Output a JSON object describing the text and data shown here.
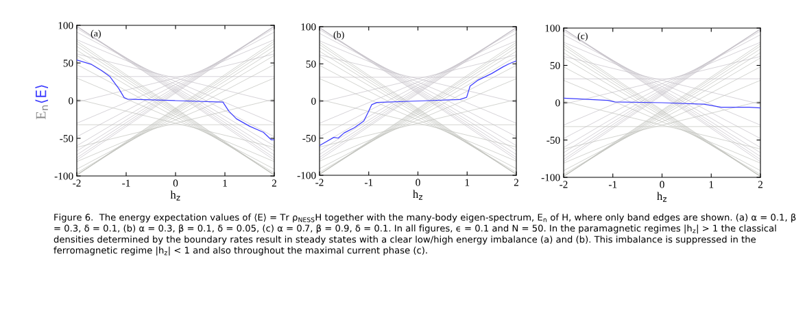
{
  "chart_data": [
    {
      "type": "line",
      "xlabel": "h$_{z}$",
      "ylabel": "E$_{n}$",
      "xlim": [
        -2,
        2
      ],
      "ylim": [
        -100,
        100
      ],
      "xticks": [
        -2,
        -1,
        0,
        1,
        2
      ],
      "yticks": [
        -100,
        -50,
        0,
        50,
        100
      ],
      "grid": false,
      "legend": false,
      "annotations": [
        "(a)",
        "Figure 6.  The energy expectation values of ⟨E⟩ = Tr ρ$_{NESS}$H together with the many-body eigen-spectrum, E$_{n}$ of H, where only band edges are shown. (a) α = 0.1, β = 0.3, δ = 0.1, (b) α = 0.3, β = 0.1, δ = 0.05, (c) α = 0.7, β = 0.9, δ = 0.1. In all figures, ϵ = 0.1 and N = 50. In the paramagnetic regimes |h$_{z}$| > 1 the classical densities determined by the boundary rates result in steady states with a clear low/high energy imbalance (a) and (b). This imbalance is suppressed in the ferromagnetic regime |h$_{z}$| < 1 and also throughout the maximal current phase (c)."
      ],
      "series": [
        {
          "color": "#c4bfc6",
          "x": [
            -2,
            2
          ],
          "values": [
            -79,
            99
          ]
        },
        {
          "color": "#c4bfc6",
          "x": [
            -2,
            2
          ],
          "values": [
            -76,
            99
          ]
        },
        {
          "color": "#c4bfc6",
          "x": [
            -2,
            2
          ],
          "values": [
            -72,
            99
          ]
        },
        {
          "color": "#c4bfc6",
          "x": [
            -2,
            2
          ],
          "values": [
            -67,
            98
          ]
        },
        {
          "color": "#c4bfc6",
          "x": [
            -2,
            2
          ],
          "values": [
            -60,
            96
          ]
        },
        {
          "color": "#c4bfc6",
          "x": [
            -2,
            2
          ],
          "values": [
            -48,
            91
          ]
        },
        {
          "color": "#c4bfc6",
          "x": [
            -2,
            2
          ],
          "values": [
            -30,
            81
          ]
        },
        {
          "color": "#c4bfc6",
          "x": [
            -2,
            2
          ],
          "values": [
            -2,
            62
          ]
        },
        {
          "color": "#c4bfc6",
          "x": [
            -2,
            2
          ],
          "values": [
            32,
            32
          ]
        },
        {
          "color": "#c4bfc6",
          "x": [
            -2,
            2
          ],
          "values": [
            62,
            -2
          ]
        },
        {
          "color": "#c4bfc6",
          "x": [
            -2,
            2
          ],
          "values": [
            81,
            -30
          ]
        },
        {
          "color": "#c4bfc6",
          "x": [
            -2,
            2
          ],
          "values": [
            91,
            -48
          ]
        },
        {
          "color": "#c4bfc6",
          "x": [
            -2,
            2
          ],
          "values": [
            96,
            -60
          ]
        },
        {
          "color": "#c4bfc6",
          "x": [
            -2,
            2
          ],
          "values": [
            98,
            -67
          ]
        },
        {
          "color": "#c4bfc6",
          "x": [
            -2,
            2
          ],
          "values": [
            99,
            -72
          ]
        },
        {
          "color": "#c4bfc6",
          "x": [
            -2,
            2
          ],
          "values": [
            99,
            -76
          ]
        },
        {
          "color": "#c4bfc6",
          "x": [
            -2,
            2
          ],
          "values": [
            99,
            -79
          ]
        },
        {
          "color": "#bfc0bb",
          "x": [
            -2,
            2
          ],
          "values": [
            79,
            -99
          ]
        },
        {
          "color": "#bfc0bb",
          "x": [
            -2,
            2
          ],
          "values": [
            76,
            -99
          ]
        },
        {
          "color": "#bfc0bb",
          "x": [
            -2,
            2
          ],
          "values": [
            72,
            -99
          ]
        },
        {
          "color": "#bfc0bb",
          "x": [
            -2,
            2
          ],
          "values": [
            67,
            -98
          ]
        },
        {
          "color": "#bfc0bb",
          "x": [
            -2,
            2
          ],
          "values": [
            60,
            -96
          ]
        },
        {
          "color": "#bfc0bb",
          "x": [
            -2,
            2
          ],
          "values": [
            48,
            -91
          ]
        },
        {
          "color": "#bfc0bb",
          "x": [
            -2,
            2
          ],
          "values": [
            30,
            -81
          ]
        },
        {
          "color": "#bfc0bb",
          "x": [
            -2,
            2
          ],
          "values": [
            2,
            -62
          ]
        },
        {
          "color": "#bfc0bb",
          "x": [
            -2,
            2
          ],
          "values": [
            -32,
            -32
          ]
        },
        {
          "color": "#bfc0bb",
          "x": [
            -2,
            2
          ],
          "values": [
            -62,
            2
          ]
        },
        {
          "color": "#bfc0bb",
          "x": [
            -2,
            2
          ],
          "values": [
            -81,
            30
          ]
        },
        {
          "color": "#bfc0bb",
          "x": [
            -2,
            2
          ],
          "values": [
            -91,
            48
          ]
        },
        {
          "color": "#bfc0bb",
          "x": [
            -2,
            2
          ],
          "values": [
            -96,
            60
          ]
        },
        {
          "color": "#bfc0bb",
          "x": [
            -2,
            2
          ],
          "values": [
            -98,
            67
          ]
        },
        {
          "color": "#bfc0bb",
          "x": [
            -2,
            2
          ],
          "values": [
            -99,
            72
          ]
        },
        {
          "color": "#bfc0bb",
          "x": [
            -2,
            2
          ],
          "values": [
            -99,
            76
          ]
        },
        {
          "color": "#bfc0bb",
          "x": [
            -2,
            2
          ],
          "values": [
            -99,
            79
          ]
        },
        {
          "name": "⟨E⟩",
          "color": "#3b3bff",
          "x": [
            -2,
            -1.7,
            -1.5,
            -1.33,
            -1.15,
            -1.04,
            -0.97,
            0,
            0.96,
            1.08,
            1.23,
            1.5,
            1.78,
            1.94,
            2
          ],
          "values": [
            54,
            48,
            40,
            32,
            16,
            4,
            2,
            0,
            -2,
            -14,
            -24,
            -34,
            -42,
            -52,
            -52
          ]
        }
      ]
    },
    {
      "type": "line",
      "xlabel": "h$_{z}$",
      "xlim": [
        -2,
        2
      ],
      "ylim": [
        -100,
        100
      ],
      "xticks": [
        -2,
        -1,
        0,
        1,
        2
      ],
      "yticks": [
        -100,
        -50,
        0,
        50,
        100
      ],
      "grid": false,
      "legend": false,
      "annotations": [
        "(b)"
      ],
      "series": [
        {
          "color": "#c4bfc6",
          "x": [
            -2,
            2
          ],
          "values": [
            -79,
            99
          ]
        },
        {
          "color": "#c4bfc6",
          "x": [
            -2,
            2
          ],
          "values": [
            -76,
            99
          ]
        },
        {
          "color": "#c4bfc6",
          "x": [
            -2,
            2
          ],
          "values": [
            -72,
            99
          ]
        },
        {
          "color": "#c4bfc6",
          "x": [
            -2,
            2
          ],
          "values": [
            -67,
            98
          ]
        },
        {
          "color": "#c4bfc6",
          "x": [
            -2,
            2
          ],
          "values": [
            -60,
            96
          ]
        },
        {
          "color": "#c4bfc6",
          "x": [
            -2,
            2
          ],
          "values": [
            -48,
            91
          ]
        },
        {
          "color": "#c4bfc6",
          "x": [
            -2,
            2
          ],
          "values": [
            -30,
            81
          ]
        },
        {
          "color": "#c4bfc6",
          "x": [
            -2,
            2
          ],
          "values": [
            -2,
            62
          ]
        },
        {
          "color": "#c4bfc6",
          "x": [
            -2,
            2
          ],
          "values": [
            32,
            32
          ]
        },
        {
          "color": "#c4bfc6",
          "x": [
            -2,
            2
          ],
          "values": [
            62,
            -2
          ]
        },
        {
          "color": "#c4bfc6",
          "x": [
            -2,
            2
          ],
          "values": [
            81,
            -30
          ]
        },
        {
          "color": "#c4bfc6",
          "x": [
            -2,
            2
          ],
          "values": [
            91,
            -48
          ]
        },
        {
          "color": "#c4bfc6",
          "x": [
            -2,
            2
          ],
          "values": [
            96,
            -60
          ]
        },
        {
          "color": "#c4bfc6",
          "x": [
            -2,
            2
          ],
          "values": [
            98,
            -67
          ]
        },
        {
          "color": "#c4bfc6",
          "x": [
            -2,
            2
          ],
          "values": [
            99,
            -72
          ]
        },
        {
          "color": "#c4bfc6",
          "x": [
            -2,
            2
          ],
          "values": [
            99,
            -76
          ]
        },
        {
          "color": "#c4bfc6",
          "x": [
            -2,
            2
          ],
          "values": [
            99,
            -79
          ]
        },
        {
          "color": "#bfc0bb",
          "x": [
            -2,
            2
          ],
          "values": [
            79,
            -99
          ]
        },
        {
          "color": "#bfc0bb",
          "x": [
            -2,
            2
          ],
          "values": [
            76,
            -99
          ]
        },
        {
          "color": "#bfc0bb",
          "x": [
            -2,
            2
          ],
          "values": [
            72,
            -99
          ]
        },
        {
          "color": "#bfc0bb",
          "x": [
            -2,
            2
          ],
          "values": [
            67,
            -98
          ]
        },
        {
          "color": "#bfc0bb",
          "x": [
            -2,
            2
          ],
          "values": [
            60,
            -96
          ]
        },
        {
          "color": "#bfc0bb",
          "x": [
            -2,
            2
          ],
          "values": [
            48,
            -91
          ]
        },
        {
          "color": "#bfc0bb",
          "x": [
            -2,
            2
          ],
          "values": [
            30,
            -81
          ]
        },
        {
          "color": "#bfc0bb",
          "x": [
            -2,
            2
          ],
          "values": [
            2,
            -62
          ]
        },
        {
          "color": "#bfc0bb",
          "x": [
            -2,
            2
          ],
          "values": [
            -32,
            -32
          ]
        },
        {
          "color": "#bfc0bb",
          "x": [
            -2,
            2
          ],
          "values": [
            -62,
            2
          ]
        },
        {
          "color": "#bfc0bb",
          "x": [
            -2,
            2
          ],
          "values": [
            -81,
            30
          ]
        },
        {
          "color": "#bfc0bb",
          "x": [
            -2,
            2
          ],
          "values": [
            -91,
            48
          ]
        },
        {
          "color": "#bfc0bb",
          "x": [
            -2,
            2
          ],
          "values": [
            -96,
            60
          ]
        },
        {
          "color": "#bfc0bb",
          "x": [
            -2,
            2
          ],
          "values": [
            -98,
            67
          ]
        },
        {
          "color": "#bfc0bb",
          "x": [
            -2,
            2
          ],
          "values": [
            -99,
            72
          ]
        },
        {
          "color": "#bfc0bb",
          "x": [
            -2,
            2
          ],
          "values": [
            -99,
            76
          ]
        },
        {
          "color": "#bfc0bb",
          "x": [
            -2,
            2
          ],
          "values": [
            -99,
            79
          ]
        },
        {
          "color": "#3b3bff",
          "x": [
            -2,
            -1.71,
            -1.62,
            -1.5,
            -1.29,
            -1.1,
            -1.01,
            -0.94,
            -0.83,
            0,
            0.85,
            0.99,
            1.06,
            1.22,
            1.5,
            1.73,
            1.85,
            2
          ],
          "values": [
            -60,
            -49,
            -50,
            -43,
            -36,
            -27,
            -15,
            -5,
            -2,
            0,
            2,
            5,
            20,
            28,
            37,
            46,
            50,
            54
          ]
        }
      ]
    },
    {
      "type": "line",
      "xlabel": "h$_{z}$",
      "xlim": [
        -2,
        2
      ],
      "ylim": [
        -100,
        100
      ],
      "xticks": [
        -2,
        -1,
        0,
        1,
        2
      ],
      "yticks": [
        -100,
        -50,
        0,
        50,
        100
      ],
      "grid": false,
      "legend": false,
      "annotations": [
        "(c)"
      ],
      "series": [
        {
          "color": "#c4bfc6",
          "x": [
            -2,
            2
          ],
          "values": [
            -79,
            99
          ]
        },
        {
          "color": "#c4bfc6",
          "x": [
            -2,
            2
          ],
          "values": [
            -76,
            99
          ]
        },
        {
          "color": "#c4bfc6",
          "x": [
            -2,
            2
          ],
          "values": [
            -72,
            99
          ]
        },
        {
          "color": "#c4bfc6",
          "x": [
            -2,
            2
          ],
          "values": [
            -67,
            98
          ]
        },
        {
          "color": "#c4bfc6",
          "x": [
            -2,
            2
          ],
          "values": [
            -60,
            96
          ]
        },
        {
          "color": "#c4bfc6",
          "x": [
            -2,
            2
          ],
          "values": [
            -48,
            91
          ]
        },
        {
          "color": "#c4bfc6",
          "x": [
            -2,
            2
          ],
          "values": [
            -30,
            81
          ]
        },
        {
          "color": "#c4bfc6",
          "x": [
            -2,
            2
          ],
          "values": [
            -2,
            62
          ]
        },
        {
          "color": "#c4bfc6",
          "x": [
            -2,
            2
          ],
          "values": [
            32,
            32
          ]
        },
        {
          "color": "#c4bfc6",
          "x": [
            -2,
            2
          ],
          "values": [
            62,
            -2
          ]
        },
        {
          "color": "#c4bfc6",
          "x": [
            -2,
            2
          ],
          "values": [
            81,
            -30
          ]
        },
        {
          "color": "#c4bfc6",
          "x": [
            -2,
            2
          ],
          "values": [
            91,
            -48
          ]
        },
        {
          "color": "#c4bfc6",
          "x": [
            -2,
            2
          ],
          "values": [
            96,
            -60
          ]
        },
        {
          "color": "#c4bfc6",
          "x": [
            -2,
            2
          ],
          "values": [
            98,
            -67
          ]
        },
        {
          "color": "#c4bfc6",
          "x": [
            -2,
            2
          ],
          "values": [
            99,
            -72
          ]
        },
        {
          "color": "#c4bfc6",
          "x": [
            -2,
            2
          ],
          "values": [
            99,
            -76
          ]
        },
        {
          "color": "#c4bfc6",
          "x": [
            -2,
            2
          ],
          "values": [
            99,
            -79
          ]
        },
        {
          "color": "#bfc0bb",
          "x": [
            -2,
            2
          ],
          "values": [
            79,
            -99
          ]
        },
        {
          "color": "#bfc0bb",
          "x": [
            -2,
            2
          ],
          "values": [
            76,
            -99
          ]
        },
        {
          "color": "#bfc0bb",
          "x": [
            -2,
            2
          ],
          "values": [
            72,
            -99
          ]
        },
        {
          "color": "#bfc0bb",
          "x": [
            -2,
            2
          ],
          "values": [
            67,
            -98
          ]
        },
        {
          "color": "#bfc0bb",
          "x": [
            -2,
            2
          ],
          "values": [
            60,
            -96
          ]
        },
        {
          "color": "#bfc0bb",
          "x": [
            -2,
            2
          ],
          "values": [
            48,
            -91
          ]
        },
        {
          "color": "#bfc0bb",
          "x": [
            -2,
            2
          ],
          "values": [
            30,
            -81
          ]
        },
        {
          "color": "#bfc0bb",
          "x": [
            -2,
            2
          ],
          "values": [
            2,
            -62
          ]
        },
        {
          "color": "#bfc0bb",
          "x": [
            -2,
            2
          ],
          "values": [
            -32,
            -32
          ]
        },
        {
          "color": "#bfc0bb",
          "x": [
            -2,
            2
          ],
          "values": [
            -62,
            2
          ]
        },
        {
          "color": "#bfc0bb",
          "x": [
            -2,
            2
          ],
          "values": [
            -81,
            30
          ]
        },
        {
          "color": "#bfc0bb",
          "x": [
            -2,
            2
          ],
          "values": [
            -91,
            48
          ]
        },
        {
          "color": "#bfc0bb",
          "x": [
            -2,
            2
          ],
          "values": [
            -96,
            60
          ]
        },
        {
          "color": "#bfc0bb",
          "x": [
            -2,
            2
          ],
          "values": [
            -98,
            67
          ]
        },
        {
          "color": "#bfc0bb",
          "x": [
            -2,
            2
          ],
          "values": [
            -99,
            72
          ]
        },
        {
          "color": "#bfc0bb",
          "x": [
            -2,
            2
          ],
          "values": [
            -99,
            76
          ]
        },
        {
          "color": "#bfc0bb",
          "x": [
            -2,
            2
          ],
          "values": [
            -99,
            79
          ]
        },
        {
          "color": "#3b3bff",
          "x": [
            -2,
            -1.1,
            -0.96,
            0,
            0.85,
            1.2,
            1.77,
            2
          ],
          "values": [
            6,
            3,
            1,
            0,
            -2,
            -6,
            -6,
            -7
          ]
        }
      ]
    }
  ]
}
